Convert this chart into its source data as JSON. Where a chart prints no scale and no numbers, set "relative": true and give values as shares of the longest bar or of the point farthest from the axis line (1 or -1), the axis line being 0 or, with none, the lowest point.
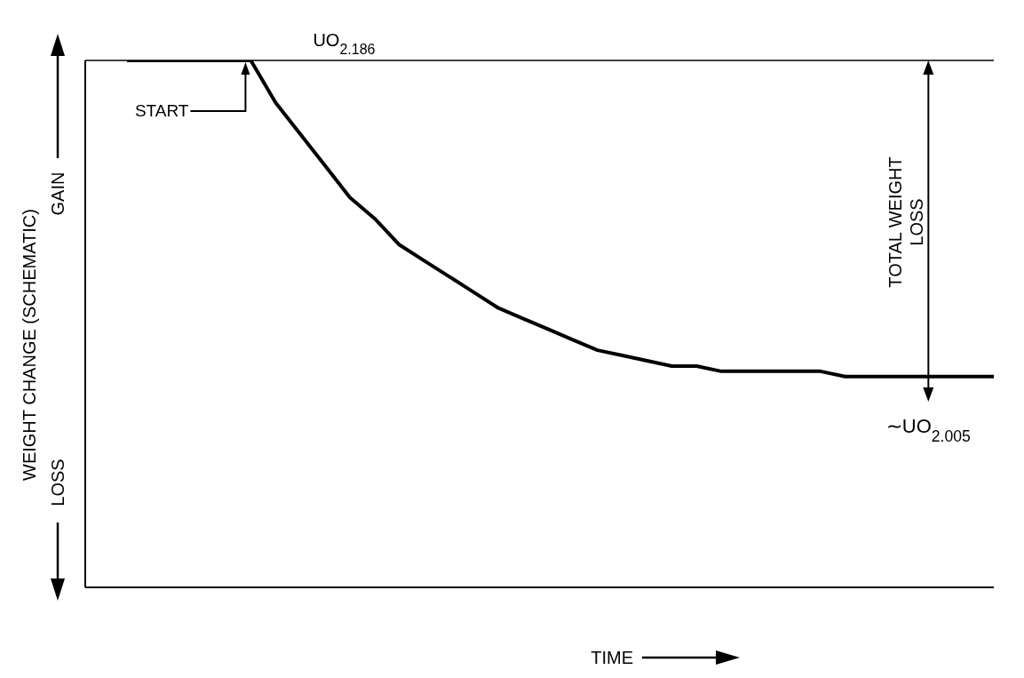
{
  "chart_data": {
    "type": "line",
    "relative": true,
    "xlabel": "TIME",
    "ylabel": "WEIGHT CHANGE (SCHEMATIC)",
    "marker": "none",
    "categories": [
      null,
      null,
      null,
      null,
      null,
      null,
      null,
      null,
      null,
      null,
      null,
      null,
      null,
      null,
      null,
      null,
      null,
      null,
      null,
      null,
      null,
      null,
      null,
      null,
      null,
      null,
      null,
      null,
      null,
      null,
      null,
      null,
      null,
      null,
      null,
      null
    ],
    "series": [
      {
        "color": "#000000",
        "values": [
          1,
          1,
          1,
          1,
          1,
          1,
          0.92,
          0.86,
          0.8,
          0.74,
          0.7,
          0.65,
          0.62,
          0.59,
          0.56,
          0.53,
          0.51,
          0.49,
          0.47,
          0.45,
          0.44,
          0.43,
          0.42,
          0.42,
          0.41,
          0.41,
          0.41,
          0.41,
          0.41,
          0.4,
          0.4,
          0.4,
          0.4,
          0.4,
          0.4,
          0.4
        ]
      }
    ],
    "ref_lines": [
      {
        "axis": "y",
        "value": 1,
        "color": "#000000"
      }
    ],
    "annotations": [
      "UO$_{2.186}$",
      "START",
      "TOTAL WEIGHT LOSS",
      "∼UO$_{2.005}$",
      "GAIN",
      "LOSS"
    ]
  }
}
